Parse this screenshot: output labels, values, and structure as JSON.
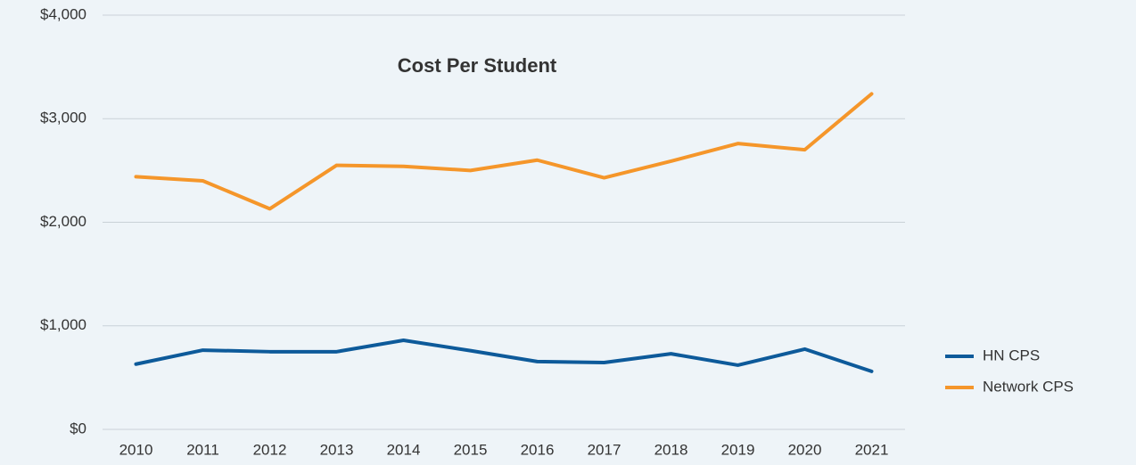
{
  "chart_data": {
    "type": "line",
    "title": "Cost Per Student",
    "categories": [
      "2010",
      "2011",
      "2012",
      "2013",
      "2014",
      "2015",
      "2016",
      "2017",
      "2018",
      "2019",
      "2020",
      "2021"
    ],
    "series": [
      {
        "name": "HN CPS",
        "color": "#0d5a9a",
        "values": [
          630,
          765,
          750,
          750,
          860,
          760,
          655,
          645,
          730,
          620,
          775,
          560
        ]
      },
      {
        "name": "Network CPS",
        "color": "#f5962a",
        "values": [
          2440,
          2400,
          2130,
          2550,
          2540,
          2500,
          2600,
          2430,
          2590,
          2760,
          2700,
          3240
        ]
      }
    ],
    "ylim": [
      0,
      4000
    ],
    "yticks": [
      {
        "value": 0,
        "label": "$0"
      },
      {
        "value": 1000,
        "label": "$1,000"
      },
      {
        "value": 2000,
        "label": "$2,000"
      },
      {
        "value": 3000,
        "label": "$3,000"
      },
      {
        "value": 4000,
        "label": "$4,000"
      }
    ],
    "grid": true,
    "legend": "right"
  }
}
